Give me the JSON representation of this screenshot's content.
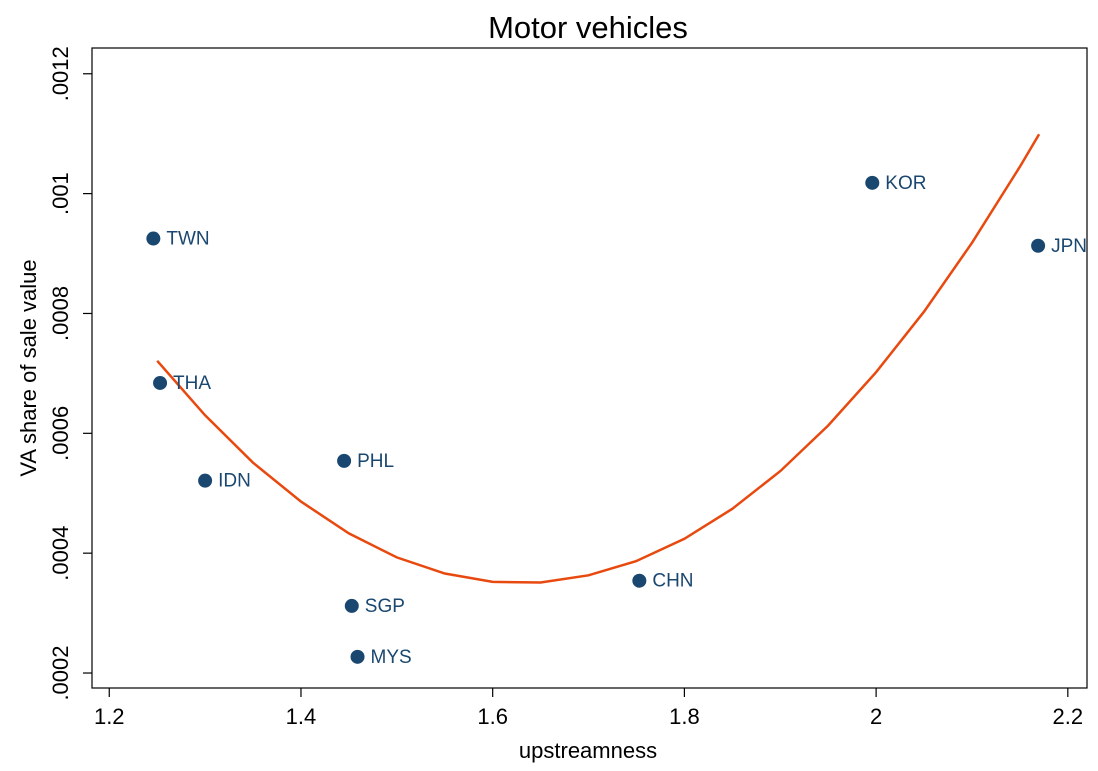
{
  "chart_data": {
    "type": "scatter",
    "title": "Motor vehicles",
    "x_label": "upstreamness",
    "y_label": "VA share of sale value",
    "points": {
      "color": "#1a476f",
      "x": [
        1.246,
        1.253,
        1.3,
        1.445,
        1.453,
        1.459,
        1.753,
        1.996,
        2.169
      ],
      "y": [
        0.000925,
        0.000684,
        0.000521,
        0.000554,
        0.000312,
        0.000227,
        0.000354,
        0.001018,
        0.000913
      ],
      "labels": [
        "TWN",
        "THA",
        "IDN",
        "PHL",
        "SGP",
        "MYS",
        "CHN",
        "KOR",
        "JPN"
      ]
    },
    "fit": {
      "color": "#e8490f",
      "x": [
        1.25,
        1.3,
        1.35,
        1.4,
        1.45,
        1.5,
        1.55,
        1.6,
        1.65,
        1.7,
        1.75,
        1.8,
        1.85,
        1.9,
        1.95,
        2.0,
        2.05,
        2.1,
        2.15,
        2.17
      ],
      "y": [
        0.000721,
        0.00063,
        0.000551,
        0.000486,
        0.000433,
        0.000393,
        0.000366,
        0.000352,
        0.000351,
        0.000363,
        0.000387,
        0.000424,
        0.000474,
        0.000537,
        0.000613,
        0.000702,
        0.000803,
        0.000918,
        0.001045,
        0.001099
      ]
    },
    "xlim": [
      1.182,
      2.22
    ],
    "ylim": [
      0.000175,
      0.001243
    ],
    "xticks": [
      1.2,
      1.4,
      1.6,
      1.8,
      2,
      2.2
    ],
    "yticks": [
      {
        "value": 0.0002,
        "label": ".0002"
      },
      {
        "value": 0.0004,
        "label": ".0004"
      },
      {
        "value": 0.0006,
        "label": ".0006"
      },
      {
        "value": 0.0008,
        "label": ".0008"
      },
      {
        "value": 0.001,
        "label": ".001"
      },
      {
        "value": 0.0012,
        "label": ".0012"
      }
    ]
  }
}
